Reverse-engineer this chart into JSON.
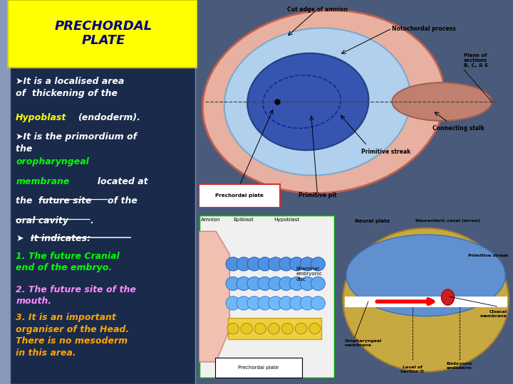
{
  "title": "PRECHORDAL\nPLATE",
  "title_bg": "#FFFF00",
  "title_color": "#000080",
  "slide_bg": "#4a5a7a",
  "left_panel_bg": "#1a2a4a",
  "white_color": "#FFFFFF",
  "yellow_color": "#FFFF00",
  "green_color": "#00FF00",
  "magenta_color": "#FF88FF",
  "orange_color": "#FFA500"
}
